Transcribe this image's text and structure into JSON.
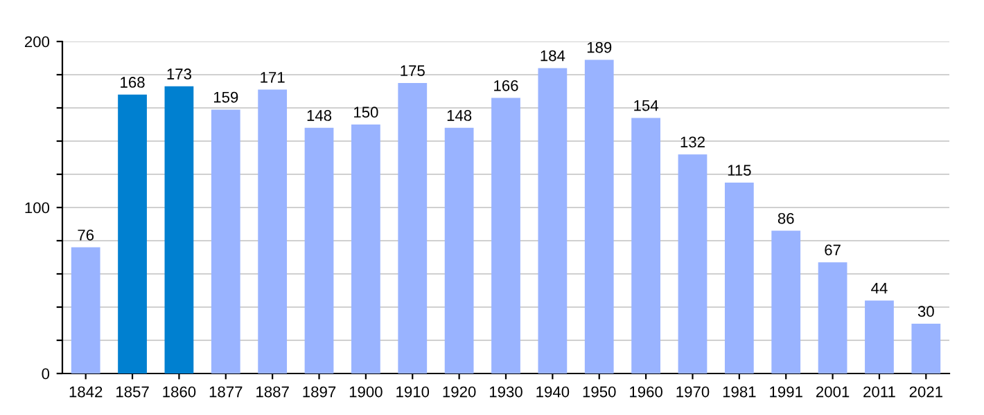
{
  "chart_data": {
    "type": "bar",
    "categories": [
      "1842",
      "1857",
      "1860",
      "1877",
      "1887",
      "1897",
      "1900",
      "1910",
      "1920",
      "1930",
      "1940",
      "1950",
      "1960",
      "1970",
      "1981",
      "1991",
      "2001",
      "2011",
      "2021"
    ],
    "values": [
      76,
      168,
      173,
      159,
      171,
      148,
      150,
      175,
      148,
      166,
      184,
      189,
      154,
      132,
      115,
      86,
      67,
      44,
      30
    ],
    "colors": [
      "#99b3ff",
      "#0080d0",
      "#0080d0",
      "#99b3ff",
      "#99b3ff",
      "#99b3ff",
      "#99b3ff",
      "#99b3ff",
      "#99b3ff",
      "#99b3ff",
      "#99b3ff",
      "#99b3ff",
      "#99b3ff",
      "#99b3ff",
      "#99b3ff",
      "#99b3ff",
      "#99b3ff",
      "#99b3ff",
      "#99b3ff"
    ],
    "ylim": [
      0,
      200
    ],
    "yticks": [
      0,
      {
        "value": 20,
        "label": null
      },
      {
        "value": 40,
        "label": null
      },
      {
        "value": 60,
        "label": null
      },
      {
        "value": 80,
        "label": null
      },
      100,
      {
        "value": 120,
        "label": null
      },
      {
        "value": 140,
        "label": null
      },
      {
        "value": 160,
        "label": null
      },
      {
        "value": 180,
        "label": null
      },
      200
    ],
    "grid": "y",
    "data_labels": true
  }
}
